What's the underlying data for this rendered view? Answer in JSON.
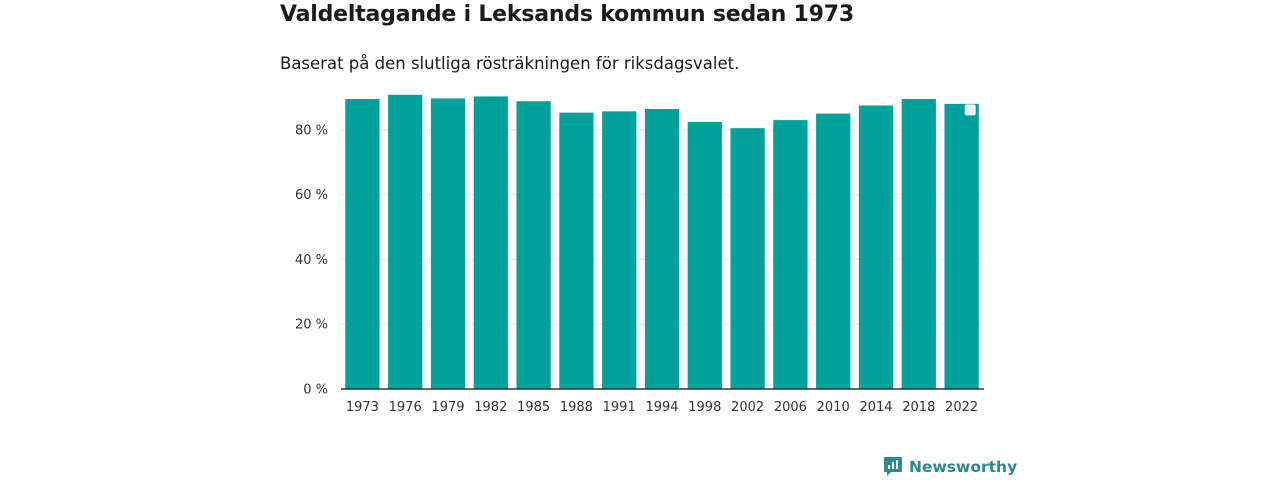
{
  "title": "Valdeltagande i Leksands kommun sedan 1973",
  "subtitle": "Baserat på den slutliga rösträkningen för riksdagsvalet.",
  "brand": {
    "name": "Newsworthy",
    "icon": "newsworthy-logo-icon"
  },
  "colors": {
    "bar": "#00a19a",
    "grid": "#e6e6e6",
    "axis": "#333333",
    "brand": "#2c8a8a"
  },
  "chart_data": {
    "type": "bar",
    "title": "Valdeltagande i Leksands kommun sedan 1973",
    "xlabel": "",
    "ylabel": "",
    "categories": [
      "1973",
      "1976",
      "1979",
      "1982",
      "1985",
      "1988",
      "1991",
      "1994",
      "1998",
      "2002",
      "2006",
      "2010",
      "2014",
      "2018",
      "2022"
    ],
    "values": [
      89.5,
      90.8,
      89.7,
      90.3,
      88.8,
      85.3,
      85.7,
      86.4,
      82.4,
      80.5,
      83.0,
      85.0,
      87.5,
      89.5,
      88.0
    ],
    "ylim": [
      0,
      100
    ],
    "yticks": [
      0,
      20,
      40,
      60,
      80
    ],
    "ytick_labels": [
      "0 %",
      "20 %",
      "40 %",
      "60 %",
      "80 %"
    ],
    "grid": true
  }
}
